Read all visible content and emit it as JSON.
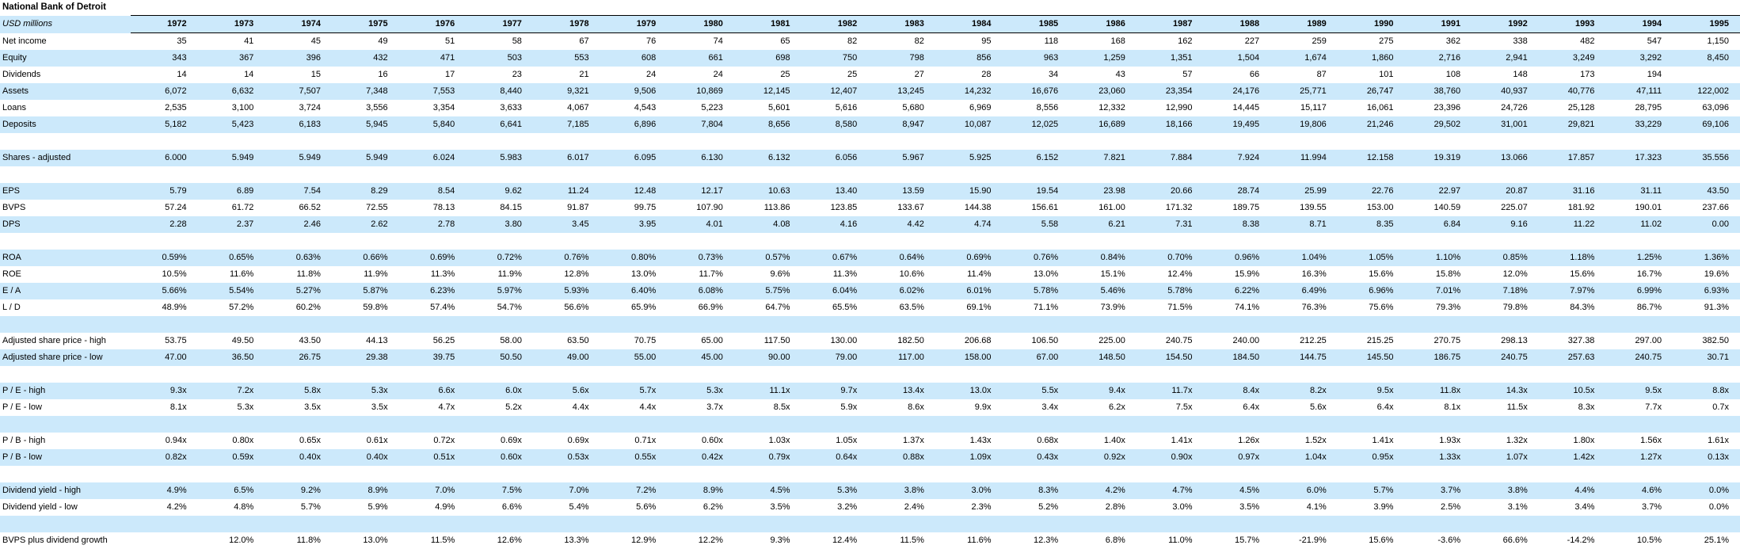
{
  "title": "National Bank of Detroit",
  "units_label": "USD millions",
  "colors": {
    "row_highlight": "#cce9fb",
    "text": "#000000",
    "border": "#000000",
    "background": "#ffffff"
  },
  "chart_data": {
    "type": "table",
    "title": "National Bank of Detroit",
    "units": "USD millions",
    "years": [
      "1972",
      "1973",
      "1974",
      "1975",
      "1976",
      "1977",
      "1978",
      "1979",
      "1980",
      "1981",
      "1982",
      "1983",
      "1984",
      "1985",
      "1986",
      "1987",
      "1988",
      "1989",
      "1990",
      "1991",
      "1992",
      "1993",
      "1994",
      "1995"
    ],
    "rows": [
      {
        "label": "Net income",
        "values": [
          "35",
          "41",
          "45",
          "49",
          "51",
          "58",
          "67",
          "76",
          "74",
          "65",
          "82",
          "82",
          "95",
          "118",
          "168",
          "162",
          "227",
          "259",
          "275",
          "362",
          "338",
          "482",
          "547",
          "1,150"
        ]
      },
      {
        "label": "Equity",
        "values": [
          "343",
          "367",
          "396",
          "432",
          "471",
          "503",
          "553",
          "608",
          "661",
          "698",
          "750",
          "798",
          "856",
          "963",
          "1,259",
          "1,351",
          "1,504",
          "1,674",
          "1,860",
          "2,716",
          "2,941",
          "3,249",
          "3,292",
          "8,450"
        ]
      },
      {
        "label": "Dividends",
        "values": [
          "14",
          "14",
          "15",
          "16",
          "17",
          "23",
          "21",
          "24",
          "24",
          "25",
          "25",
          "27",
          "28",
          "34",
          "43",
          "57",
          "66",
          "87",
          "101",
          "108",
          "148",
          "173",
          "194",
          ""
        ]
      },
      {
        "label": "Assets",
        "values": [
          "6,072",
          "6,632",
          "7,507",
          "7,348",
          "7,553",
          "8,440",
          "9,321",
          "9,506",
          "10,869",
          "12,145",
          "12,407",
          "13,245",
          "14,232",
          "16,676",
          "23,060",
          "23,354",
          "24,176",
          "25,771",
          "26,747",
          "38,760",
          "40,937",
          "40,776",
          "47,111",
          "122,002"
        ]
      },
      {
        "label": "Loans",
        "values": [
          "2,535",
          "3,100",
          "3,724",
          "3,556",
          "3,354",
          "3,633",
          "4,067",
          "4,543",
          "5,223",
          "5,601",
          "5,616",
          "5,680",
          "6,969",
          "8,556",
          "12,332",
          "12,990",
          "14,445",
          "15,117",
          "16,061",
          "23,396",
          "24,726",
          "25,128",
          "28,795",
          "63,096"
        ]
      },
      {
        "label": "Deposits",
        "values": [
          "5,182",
          "5,423",
          "6,183",
          "5,945",
          "5,840",
          "6,641",
          "7,185",
          "6,896",
          "7,804",
          "8,656",
          "8,580",
          "8,947",
          "10,087",
          "12,025",
          "16,689",
          "18,166",
          "19,495",
          "19,806",
          "21,246",
          "29,502",
          "31,001",
          "29,821",
          "33,229",
          "69,106"
        ]
      },
      {
        "label": "",
        "values": []
      },
      {
        "label": "Shares - adjusted",
        "values": [
          "6.000",
          "5.949",
          "5.949",
          "5.949",
          "6.024",
          "5.983",
          "6.017",
          "6.095",
          "6.130",
          "6.132",
          "6.056",
          "5.967",
          "5.925",
          "6.152",
          "7.821",
          "7.884",
          "7.924",
          "11.994",
          "12.158",
          "19.319",
          "13.066",
          "17.857",
          "17.323",
          "35.556"
        ]
      },
      {
        "label": "",
        "values": []
      },
      {
        "label": "EPS",
        "values": [
          "5.79",
          "6.89",
          "7.54",
          "8.29",
          "8.54",
          "9.62",
          "11.24",
          "12.48",
          "12.17",
          "10.63",
          "13.40",
          "13.59",
          "15.90",
          "19.54",
          "23.98",
          "20.66",
          "28.74",
          "25.99",
          "22.76",
          "22.97",
          "20.87",
          "31.16",
          "31.11",
          "43.50"
        ]
      },
      {
        "label": "BVPS",
        "values": [
          "57.24",
          "61.72",
          "66.52",
          "72.55",
          "78.13",
          "84.15",
          "91.87",
          "99.75",
          "107.90",
          "113.86",
          "123.85",
          "133.67",
          "144.38",
          "156.61",
          "161.00",
          "171.32",
          "189.75",
          "139.55",
          "153.00",
          "140.59",
          "225.07",
          "181.92",
          "190.01",
          "237.66"
        ]
      },
      {
        "label": "DPS",
        "values": [
          "2.28",
          "2.37",
          "2.46",
          "2.62",
          "2.78",
          "3.80",
          "3.45",
          "3.95",
          "4.01",
          "4.08",
          "4.16",
          "4.42",
          "4.74",
          "5.58",
          "6.21",
          "7.31",
          "8.38",
          "8.71",
          "8.35",
          "6.84",
          "9.16",
          "11.22",
          "11.02",
          "0.00"
        ]
      },
      {
        "label": "",
        "values": []
      },
      {
        "label": "ROA",
        "values": [
          "0.59%",
          "0.65%",
          "0.63%",
          "0.66%",
          "0.69%",
          "0.72%",
          "0.76%",
          "0.80%",
          "0.73%",
          "0.57%",
          "0.67%",
          "0.64%",
          "0.69%",
          "0.76%",
          "0.84%",
          "0.70%",
          "0.96%",
          "1.04%",
          "1.05%",
          "1.10%",
          "0.85%",
          "1.18%",
          "1.25%",
          "1.36%"
        ]
      },
      {
        "label": "ROE",
        "values": [
          "10.5%",
          "11.6%",
          "11.8%",
          "11.9%",
          "11.3%",
          "11.9%",
          "12.8%",
          "13.0%",
          "11.7%",
          "9.6%",
          "11.3%",
          "10.6%",
          "11.4%",
          "13.0%",
          "15.1%",
          "12.4%",
          "15.9%",
          "16.3%",
          "15.6%",
          "15.8%",
          "12.0%",
          "15.6%",
          "16.7%",
          "19.6%"
        ]
      },
      {
        "label": "E / A",
        "values": [
          "5.66%",
          "5.54%",
          "5.27%",
          "5.87%",
          "6.23%",
          "5.97%",
          "5.93%",
          "6.40%",
          "6.08%",
          "5.75%",
          "6.04%",
          "6.02%",
          "6.01%",
          "5.78%",
          "5.46%",
          "5.78%",
          "6.22%",
          "6.49%",
          "6.96%",
          "7.01%",
          "7.18%",
          "7.97%",
          "6.99%",
          "6.93%"
        ]
      },
      {
        "label": "L / D",
        "values": [
          "48.9%",
          "57.2%",
          "60.2%",
          "59.8%",
          "57.4%",
          "54.7%",
          "56.6%",
          "65.9%",
          "66.9%",
          "64.7%",
          "65.5%",
          "63.5%",
          "69.1%",
          "71.1%",
          "73.9%",
          "71.5%",
          "74.1%",
          "76.3%",
          "75.6%",
          "79.3%",
          "79.8%",
          "84.3%",
          "86.7%",
          "91.3%"
        ]
      },
      {
        "label": "",
        "values": []
      },
      {
        "label": "Adjusted share price - high",
        "values": [
          "53.75",
          "49.50",
          "43.50",
          "44.13",
          "56.25",
          "58.00",
          "63.50",
          "70.75",
          "65.00",
          "117.50",
          "130.00",
          "182.50",
          "206.68",
          "106.50",
          "225.00",
          "240.75",
          "240.00",
          "212.25",
          "215.25",
          "270.75",
          "298.13",
          "327.38",
          "297.00",
          "382.50"
        ]
      },
      {
        "label": "Adjusted share price - low",
        "values": [
          "47.00",
          "36.50",
          "26.75",
          "29.38",
          "39.75",
          "50.50",
          "49.00",
          "55.00",
          "45.00",
          "90.00",
          "79.00",
          "117.00",
          "158.00",
          "67.00",
          "148.50",
          "154.50",
          "184.50",
          "144.75",
          "145.50",
          "186.75",
          "240.75",
          "257.63",
          "240.75",
          "30.71"
        ]
      },
      {
        "label": "",
        "values": []
      },
      {
        "label": "P / E - high",
        "values": [
          "9.3x",
          "7.2x",
          "5.8x",
          "5.3x",
          "6.6x",
          "6.0x",
          "5.6x",
          "5.7x",
          "5.3x",
          "11.1x",
          "9.7x",
          "13.4x",
          "13.0x",
          "5.5x",
          "9.4x",
          "11.7x",
          "8.4x",
          "8.2x",
          "9.5x",
          "11.8x",
          "14.3x",
          "10.5x",
          "9.5x",
          "8.8x"
        ]
      },
      {
        "label": "P / E - low",
        "values": [
          "8.1x",
          "5.3x",
          "3.5x",
          "3.5x",
          "4.7x",
          "5.2x",
          "4.4x",
          "4.4x",
          "3.7x",
          "8.5x",
          "5.9x",
          "8.6x",
          "9.9x",
          "3.4x",
          "6.2x",
          "7.5x",
          "6.4x",
          "5.6x",
          "6.4x",
          "8.1x",
          "11.5x",
          "8.3x",
          "7.7x",
          "0.7x"
        ]
      },
      {
        "label": "",
        "values": []
      },
      {
        "label": "P / B - high",
        "values": [
          "0.94x",
          "0.80x",
          "0.65x",
          "0.61x",
          "0.72x",
          "0.69x",
          "0.69x",
          "0.71x",
          "0.60x",
          "1.03x",
          "1.05x",
          "1.37x",
          "1.43x",
          "0.68x",
          "1.40x",
          "1.41x",
          "1.26x",
          "1.52x",
          "1.41x",
          "1.93x",
          "1.32x",
          "1.80x",
          "1.56x",
          "1.61x"
        ]
      },
      {
        "label": "P / B - low",
        "values": [
          "0.82x",
          "0.59x",
          "0.40x",
          "0.40x",
          "0.51x",
          "0.60x",
          "0.53x",
          "0.55x",
          "0.42x",
          "0.79x",
          "0.64x",
          "0.88x",
          "1.09x",
          "0.43x",
          "0.92x",
          "0.90x",
          "0.97x",
          "1.04x",
          "0.95x",
          "1.33x",
          "1.07x",
          "1.42x",
          "1.27x",
          "0.13x"
        ]
      },
      {
        "label": "",
        "values": []
      },
      {
        "label": "Dividend yield - high",
        "values": [
          "4.9%",
          "6.5%",
          "9.2%",
          "8.9%",
          "7.0%",
          "7.5%",
          "7.0%",
          "7.2%",
          "8.9%",
          "4.5%",
          "5.3%",
          "3.8%",
          "3.0%",
          "8.3%",
          "4.2%",
          "4.7%",
          "4.5%",
          "6.0%",
          "5.7%",
          "3.7%",
          "3.8%",
          "4.4%",
          "4.6%",
          "0.0%"
        ]
      },
      {
        "label": "Dividend yield - low",
        "values": [
          "4.2%",
          "4.8%",
          "5.7%",
          "5.9%",
          "4.9%",
          "6.6%",
          "5.4%",
          "5.6%",
          "6.2%",
          "3.5%",
          "3.2%",
          "2.4%",
          "2.3%",
          "5.2%",
          "2.8%",
          "3.0%",
          "3.5%",
          "4.1%",
          "3.9%",
          "2.5%",
          "3.1%",
          "3.4%",
          "3.7%",
          "0.0%"
        ]
      },
      {
        "label": "",
        "values": []
      },
      {
        "label": "BVPS plus dividend growth",
        "values": [
          "",
          "12.0%",
          "11.8%",
          "13.0%",
          "11.5%",
          "12.6%",
          "13.3%",
          "12.9%",
          "12.2%",
          "9.3%",
          "12.4%",
          "11.5%",
          "11.6%",
          "12.3%",
          "6.8%",
          "11.0%",
          "15.7%",
          "-21.9%",
          "15.6%",
          "-3.6%",
          "66.6%",
          "-14.2%",
          "10.5%",
          "25.1%"
        ]
      }
    ]
  }
}
